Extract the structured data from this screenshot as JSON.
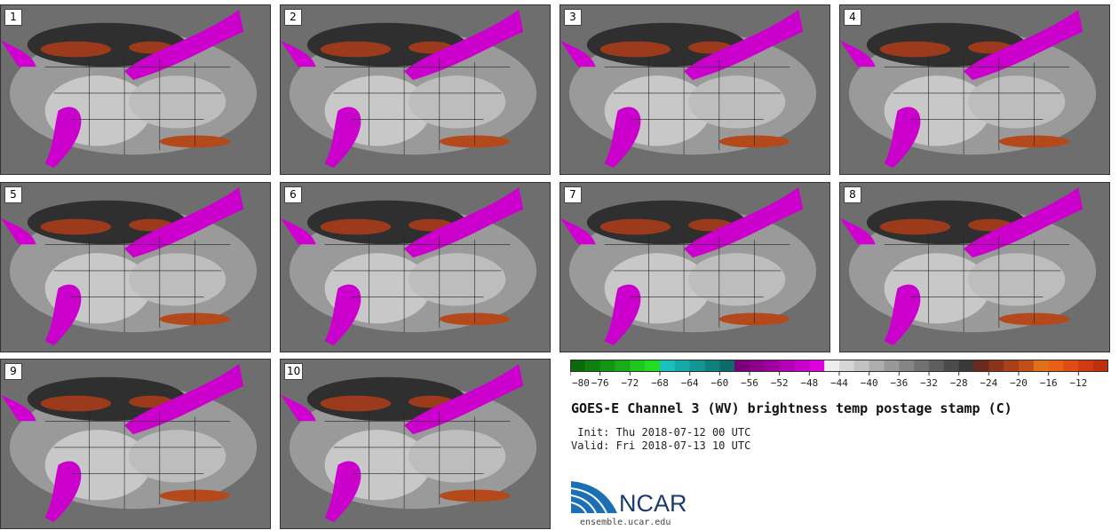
{
  "panels": [
    {
      "label": "1"
    },
    {
      "label": "2"
    },
    {
      "label": "3"
    },
    {
      "label": "4"
    },
    {
      "label": "5"
    },
    {
      "label": "6"
    },
    {
      "label": "7"
    },
    {
      "label": "8"
    },
    {
      "label": "9"
    },
    {
      "label": "10"
    }
  ],
  "colorbar": {
    "ticks": [
      "−80",
      "−76",
      "−72",
      "−68",
      "−64",
      "−60",
      "−56",
      "−52",
      "−48",
      "−44",
      "−40",
      "−36",
      "−32",
      "−28",
      "−24",
      "−20",
      "−16",
      "−12"
    ],
    "colors": [
      "#0b6b0b",
      "#0f7f0f",
      "#139513",
      "#18ad18",
      "#1ec81e",
      "#22dd22",
      "#18c0c0",
      "#14aaaa",
      "#119595",
      "#0e8080",
      "#0b6b6b",
      "#7a007a",
      "#8c008c",
      "#a000a0",
      "#b400b4",
      "#c800c8",
      "#dc00dc",
      "#ededed",
      "#d6d6d6",
      "#c2c2c2",
      "#adadad",
      "#999999",
      "#858585",
      "#717171",
      "#5e5e5e",
      "#4b4b4b",
      "#383838",
      "#6b2a1e",
      "#8a3418",
      "#a8401a",
      "#c0501a",
      "#e0701a",
      "#e86018",
      "#e04a14",
      "#d03a10",
      "#c02e0c"
    ]
  },
  "title": "GOES-E Channel 3 (WV) brightness temp postage stamp (C)",
  "init_line": " Init: Thu 2018-07-12 00 UTC",
  "valid_line": "Valid: Fri 2018-07-13 10 UTC",
  "logo_text": "NCAR",
  "website": "ensemble.ucar.edu"
}
